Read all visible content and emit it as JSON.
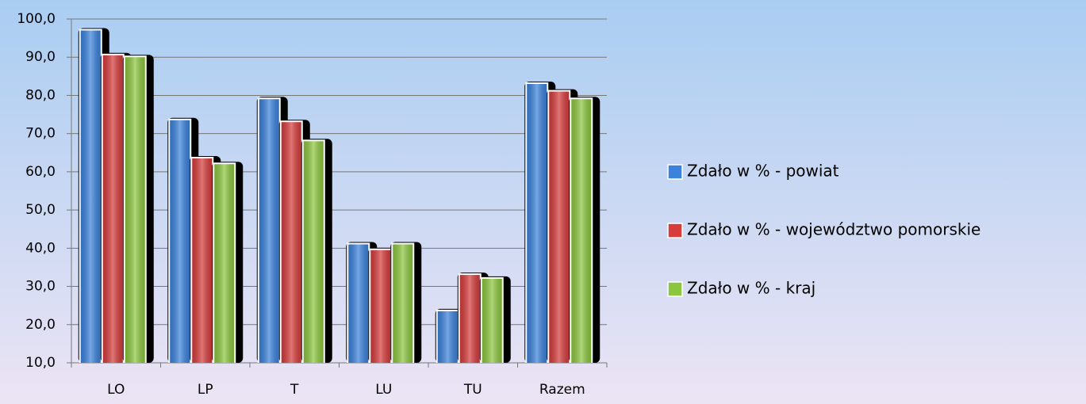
{
  "chart_data": {
    "type": "bar",
    "categories": [
      "LO",
      "LP",
      "T",
      "LU",
      "TU",
      "Razem"
    ],
    "series": [
      {
        "name": "Zdało w % - powiat",
        "color": "#3b82dc",
        "values": [
          97,
          73.5,
          79,
          41,
          23.5,
          83
        ]
      },
      {
        "name": "Zdało w % - województwo pomorskie",
        "color": "#d63c3c",
        "values": [
          90.5,
          63.5,
          73,
          39.5,
          33,
          81
        ]
      },
      {
        "name": "Zdało w % - kraj",
        "color": "#8cc63f",
        "values": [
          90,
          62,
          68,
          41,
          32,
          79
        ]
      }
    ],
    "ylim": [
      10,
      100
    ],
    "yticks": [
      {
        "value": 10,
        "label": "10,0"
      },
      {
        "value": 20,
        "label": "20,0"
      },
      {
        "value": 30,
        "label": "30,0"
      },
      {
        "value": 40,
        "label": "40,0"
      },
      {
        "value": 50,
        "label": "50,0"
      },
      {
        "value": 60,
        "label": "60,0"
      },
      {
        "value": 70,
        "label": "70,0"
      },
      {
        "value": 80,
        "label": "80,0"
      },
      {
        "value": 90,
        "label": "90,0"
      },
      {
        "value": 100,
        "label": "100,0"
      }
    ],
    "grid": true,
    "legend": "right"
  }
}
